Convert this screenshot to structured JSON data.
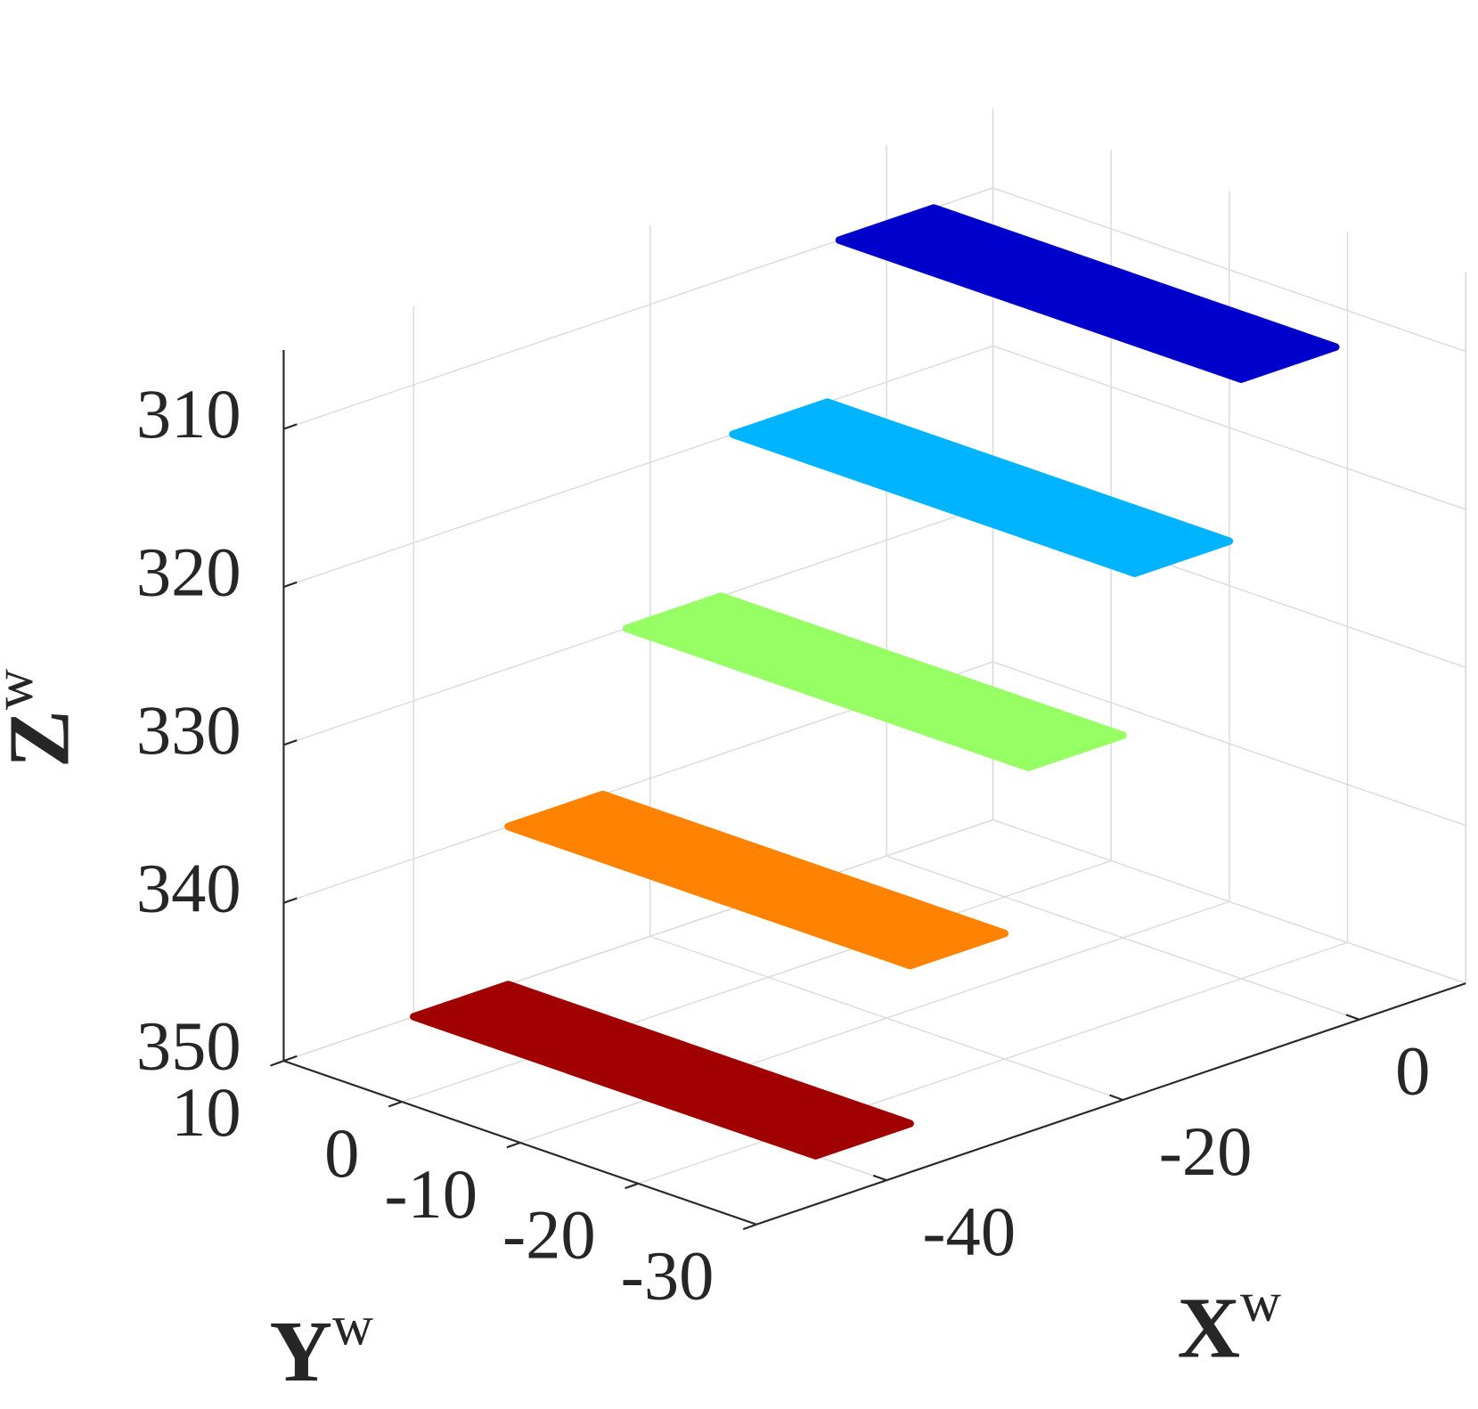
{
  "chart_data": {
    "type": "scatter3d",
    "xlabel": {
      "text": "X",
      "superscript": "w"
    },
    "ylabel": {
      "text": "Y",
      "superscript": "w"
    },
    "zlabel": {
      "text": "Z",
      "superscript": "w"
    },
    "xlim": [
      -51,
      9
    ],
    "xticks": [
      -40,
      -20,
      0
    ],
    "ylim": [
      -30,
      10
    ],
    "yticks": [
      10,
      0,
      -10,
      -20,
      -30
    ],
    "zlim": [
      305,
      350
    ],
    "zticks": [
      310,
      320,
      330,
      340,
      350
    ],
    "zdir": "reverse",
    "grid": true,
    "series": [
      {
        "color": "#0000cd",
        "x": [
          -4,
          4
        ],
        "y": [
          -24,
          10
        ],
        "z": 310
      },
      {
        "color": "#00b4ff",
        "x": [
          -13,
          -5
        ],
        "y": [
          -24,
          10
        ],
        "z": 320
      },
      {
        "color": "#96ff64",
        "x": [
          -22,
          -14
        ],
        "y": [
          -24,
          10
        ],
        "z": 330
      },
      {
        "color": "#ff8200",
        "x": [
          -32,
          -24
        ],
        "y": [
          -24,
          10
        ],
        "z": 340
      },
      {
        "color": "#a00000",
        "x": [
          -40,
          -32
        ],
        "y": [
          -24,
          10
        ],
        "z": 350
      }
    ]
  }
}
